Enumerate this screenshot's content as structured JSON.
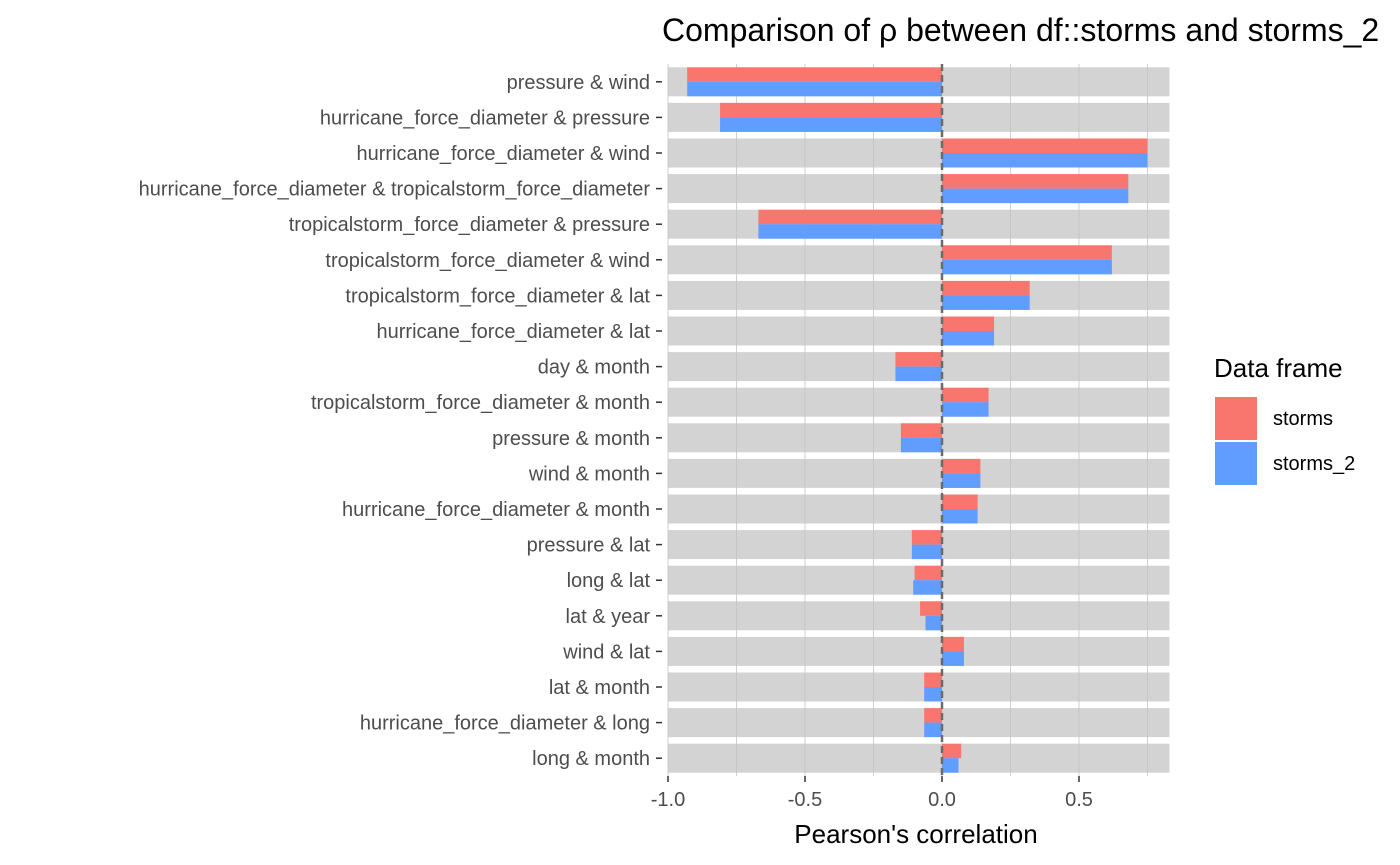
{
  "chart_data": {
    "type": "bar",
    "orientation": "horizontal",
    "title": "Comparison of ρ between df::storms and storms_2",
    "xlabel": "Pearson's correlation",
    "ylabel": "",
    "xlim": [
      -1.0,
      0.83
    ],
    "x_ticks": [
      -1.0,
      -0.5,
      0.0,
      0.5
    ],
    "x_tick_labels": [
      "-1.0",
      "-0.5",
      "0.0",
      "0.5"
    ],
    "reference_line": 0,
    "background_bar_range": [
      -1.0,
      0.83
    ],
    "grid": false,
    "legend_position": "right",
    "legend_title": "Data frame",
    "categories": [
      "pressure & wind",
      "hurricane_force_diameter & pressure",
      "hurricane_force_diameter & wind",
      "hurricane_force_diameter & tropicalstorm_force_diameter",
      "tropicalstorm_force_diameter & pressure",
      "tropicalstorm_force_diameter & wind",
      "tropicalstorm_force_diameter & lat",
      "hurricane_force_diameter & lat",
      "day & month",
      "tropicalstorm_force_diameter & month",
      "pressure & month",
      "wind & month",
      "hurricane_force_diameter & month",
      "pressure & lat",
      "long & lat",
      "lat & year",
      "wind & lat",
      "lat & month",
      "hurricane_force_diameter & long",
      "long & month"
    ],
    "series": [
      {
        "name": "storms",
        "color": "#F8766D",
        "values": [
          -0.93,
          -0.81,
          0.75,
          0.68,
          -0.67,
          0.62,
          0.32,
          0.19,
          -0.17,
          0.17,
          -0.15,
          0.14,
          0.13,
          -0.11,
          -0.1,
          -0.08,
          0.08,
          -0.065,
          -0.065,
          0.07
        ]
      },
      {
        "name": "storms_2",
        "color": "#619CFF",
        "values": [
          -0.93,
          -0.81,
          0.75,
          0.68,
          -0.67,
          0.62,
          0.32,
          0.19,
          -0.17,
          0.17,
          -0.15,
          0.14,
          0.13,
          -0.11,
          -0.105,
          -0.06,
          0.08,
          -0.065,
          -0.065,
          0.06
        ]
      }
    ]
  },
  "colors": {
    "panel_bar": "#D3D3D3",
    "reference_line": "#6b6b6b",
    "axis_tick": "#333333"
  }
}
